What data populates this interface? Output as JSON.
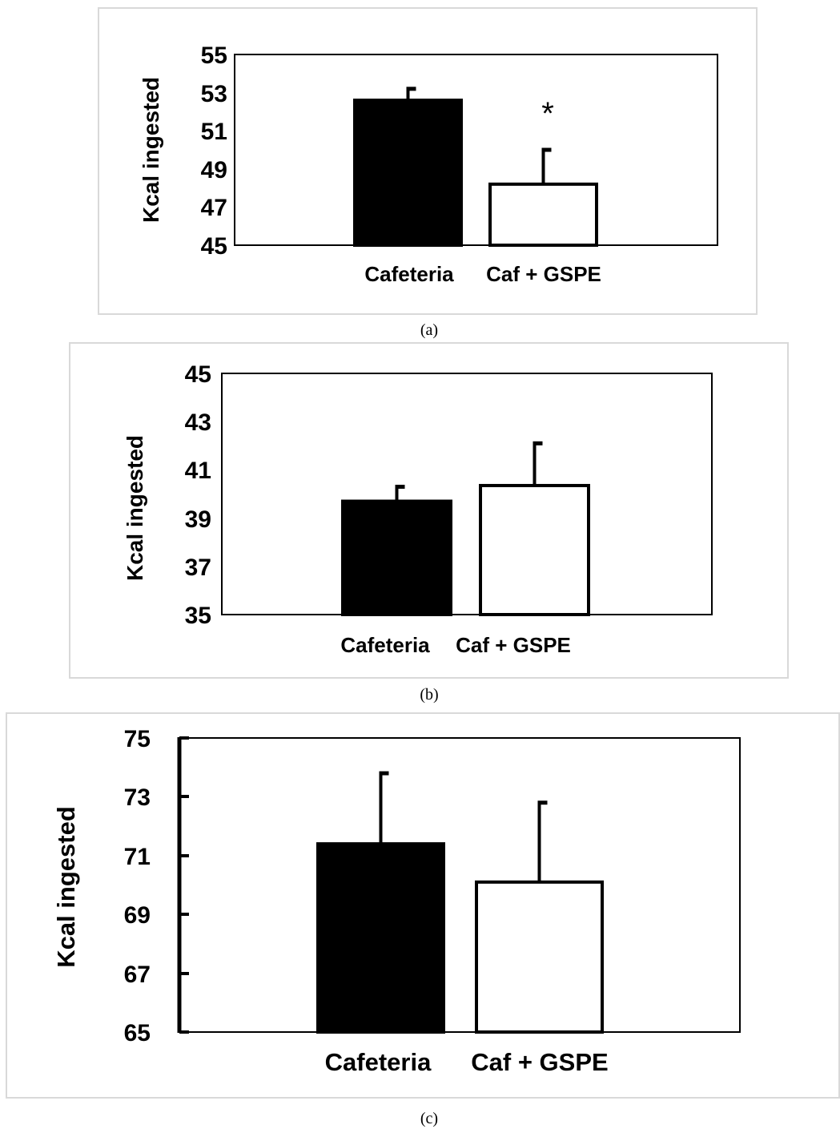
{
  "chart_data": [
    {
      "type": "bar",
      "panel_label": "(a)",
      "categories": [
        "Cafeteria",
        "Caf + GSPE"
      ],
      "values": [
        52.6,
        48.2
      ],
      "errors": [
        0.6,
        1.8
      ],
      "bar_colors": [
        "#000000",
        "#ffffff"
      ],
      "annotations": [
        "",
        "*"
      ],
      "ylabel": "Kcal ingested",
      "ylim": [
        45,
        55
      ],
      "yticks": [
        "45",
        "47",
        "49",
        "51",
        "53",
        "55"
      ],
      "grid": false
    },
    {
      "type": "bar",
      "panel_label": "(b)",
      "categories": [
        "Cafeteria",
        "Caf + GSPE"
      ],
      "values": [
        39.7,
        40.35
      ],
      "errors": [
        0.6,
        1.75
      ],
      "bar_colors": [
        "#000000",
        "#ffffff"
      ],
      "annotations": [
        "",
        ""
      ],
      "ylabel": "Kcal ingested",
      "ylim": [
        35,
        45
      ],
      "yticks": [
        "35",
        "37",
        "39",
        "41",
        "43",
        "45"
      ],
      "grid": false
    },
    {
      "type": "bar",
      "panel_label": "(c)",
      "categories": [
        "Cafeteria",
        "Caf + GSPE"
      ],
      "values": [
        71.4,
        70.1
      ],
      "errors": [
        2.4,
        2.7
      ],
      "bar_colors": [
        "#000000",
        "#ffffff"
      ],
      "annotations": [
        "",
        ""
      ],
      "ylabel": "Kcal ingested",
      "ylim": [
        65,
        75
      ],
      "yticks": [
        "65",
        "67",
        "69",
        "71",
        "73",
        "75"
      ],
      "grid": false
    }
  ]
}
